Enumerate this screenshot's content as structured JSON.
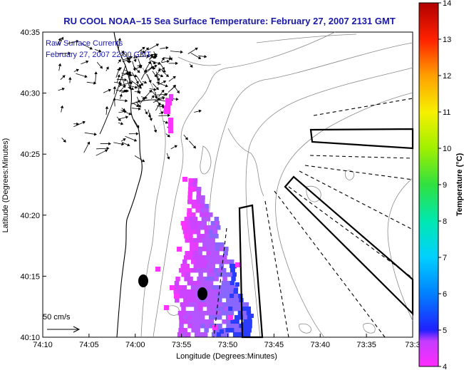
{
  "chart_data": {
    "type": "heatmap",
    "title": "RU COOL  NOAA–15  Sea Surface Temperature:  February 27, 2007 2131 GMT",
    "overlay_label_line1": "Raw Surface Currents",
    "overlay_label_line2": "February 27, 2007 22:00 GMT",
    "xlabel": "Longitude (Degrees:Minutes)",
    "ylabel": "Latitude (Degrees:Minutes)",
    "colorbar_label": "Temperature (°C)",
    "colorbar_range": [
      4,
      14
    ],
    "colorbar_ticks": [
      "4",
      "5",
      "6",
      "7",
      "8",
      "9",
      "10",
      "11",
      "12",
      "13",
      "14"
    ],
    "x_ticks": [
      "74:10",
      "74:05",
      "74:00",
      "73:55",
      "73:50",
      "73:45",
      "73:40",
      "73:35",
      "73:3"
    ],
    "y_ticks": [
      "40:10",
      "40:15",
      "40:20",
      "40:25",
      "40:30",
      "40:35"
    ],
    "scale_label": "50 cm/s",
    "sst_range_shown": [
      4,
      5.5
    ],
    "colors": {
      "title": "#1a1aa8",
      "sst_low": "#ff33ff",
      "sst_mid": "#b455ff",
      "sst_high": "#2a3dff"
    }
  }
}
